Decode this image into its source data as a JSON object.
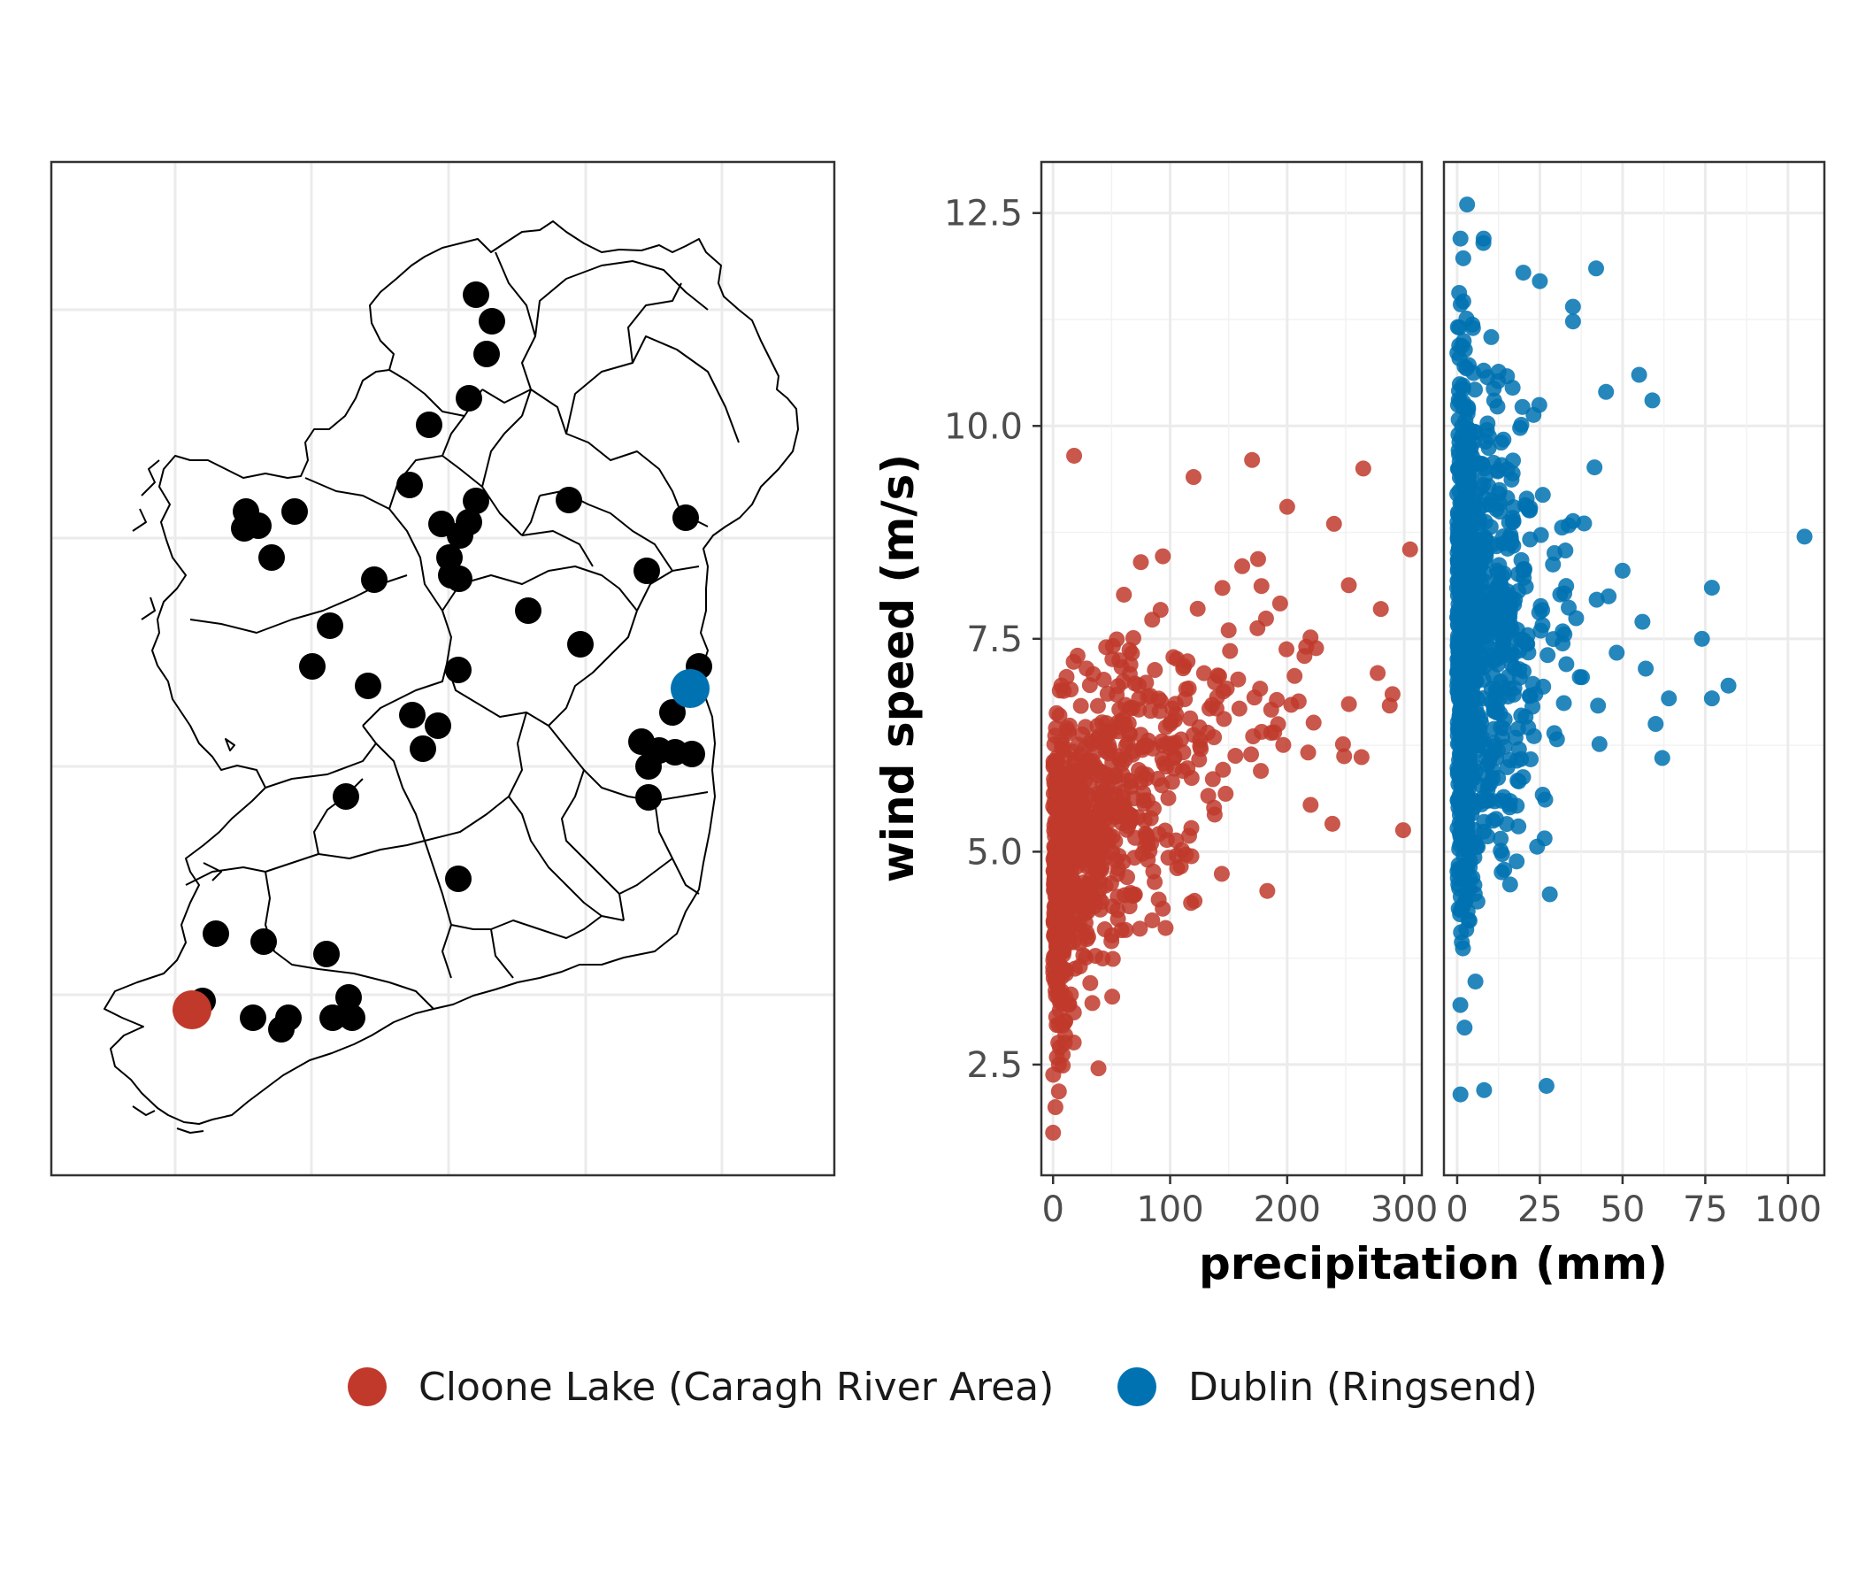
{
  "colors": {
    "cloone": "#c0392b",
    "dublin": "#0072b2",
    "station": "#000000"
  },
  "legend": {
    "items": [
      {
        "label": "Cloone Lake (Caragh River Area)",
        "color": "#c0392b"
      },
      {
        "label": "Dublin (Ringsend)",
        "color": "#0072b2"
      }
    ]
  },
  "chart_data": [
    {
      "type": "map",
      "content": "weather station locations over Ireland county boundaries",
      "station_count": 55,
      "highlighted": [
        {
          "name": "Cloone Lake (Caragh River Area)",
          "color": "#c0392b"
        },
        {
          "name": "Dublin (Ringsend)",
          "color": "#0072b2"
        }
      ],
      "grid": true
    },
    {
      "type": "scatter",
      "facet": "Cloone Lake (Caragh River Area)",
      "color": "#c0392b",
      "xlabel": "precipitation (mm)",
      "ylabel": "wind speed (m/s)",
      "xlim": [
        -10,
        315
      ],
      "ylim": [
        1.2,
        13.1
      ],
      "xticks": [
        "0",
        "100",
        "200",
        "300"
      ],
      "yticks": [
        "2.5",
        "5.0",
        "7.5",
        "10.0",
        "12.5"
      ],
      "grid": true,
      "points_approx": 900,
      "trend": "wind speed increases with precipitation",
      "sample_points": [
        [
          0,
          1.7
        ],
        [
          2,
          2.0
        ],
        [
          5,
          2.5
        ],
        [
          10,
          3.0
        ],
        [
          18,
          9.65
        ],
        [
          30,
          4.0
        ],
        [
          50,
          5.5
        ],
        [
          60,
          7.0
        ],
        [
          75,
          8.4
        ],
        [
          100,
          6.5
        ],
        [
          120,
          9.4
        ],
        [
          150,
          7.6
        ],
        [
          170,
          9.6
        ],
        [
          200,
          9.05
        ],
        [
          220,
          5.55
        ],
        [
          240,
          8.85
        ],
        [
          265,
          9.5
        ],
        [
          280,
          7.85
        ],
        [
          290,
          6.85
        ],
        [
          305,
          8.55
        ]
      ]
    },
    {
      "type": "scatter",
      "facet": "Dublin (Ringsend)",
      "color": "#0072b2",
      "xlabel": "precipitation (mm)",
      "ylabel": "wind speed (m/s)",
      "xlim": [
        -4,
        111
      ],
      "ylim": [
        1.2,
        13.1
      ],
      "xticks": [
        "0",
        "25",
        "50",
        "75",
        "100"
      ],
      "yticks": [
        "2.5",
        "5.0",
        "7.5",
        "10.0",
        "12.5"
      ],
      "grid": true,
      "points_approx": 1100,
      "sample_points": [
        [
          3,
          12.6
        ],
        [
          1,
          12.2
        ],
        [
          8,
          12.2
        ],
        [
          20,
          11.8
        ],
        [
          25,
          11.7
        ],
        [
          42,
          11.85
        ],
        [
          35,
          11.4
        ],
        [
          45,
          10.4
        ],
        [
          55,
          10.6
        ],
        [
          59,
          10.3
        ],
        [
          50,
          8.3
        ],
        [
          56,
          7.7
        ],
        [
          57,
          7.15
        ],
        [
          64,
          6.8
        ],
        [
          60,
          6.5
        ],
        [
          62,
          6.1
        ],
        [
          74,
          7.5
        ],
        [
          77,
          8.1
        ],
        [
          77,
          6.8
        ],
        [
          82,
          6.95
        ],
        [
          105,
          8.7
        ],
        [
          27,
          2.25
        ],
        [
          1,
          2.15
        ],
        [
          28,
          4.5
        ]
      ]
    }
  ]
}
